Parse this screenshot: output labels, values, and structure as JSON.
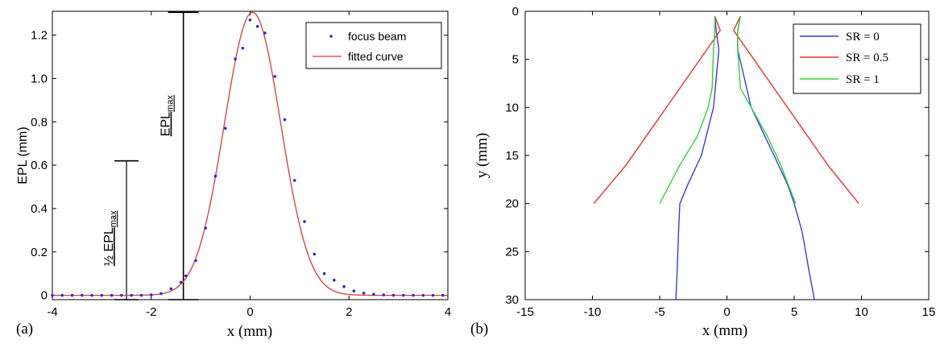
{
  "chart_data": [
    {
      "panel_label": "(a)",
      "type": "scatter",
      "xlabel": "x (mm)",
      "ylabel": "EPL (mm)",
      "xlim": [
        -4,
        4
      ],
      "ylim": [
        -0.02,
        1.31
      ],
      "xticks": [
        -4,
        -2,
        0,
        2,
        4
      ],
      "yticks": [
        0,
        0.2,
        0.4,
        0.6,
        0.8,
        1.0,
        1.2
      ],
      "ytick_labels": [
        "0",
        "0.2",
        "0.4",
        "0.6",
        "0.8",
        "1.0",
        "1.2"
      ],
      "grid": false,
      "legend_position": "top-right",
      "series": [
        {
          "name": "focus beam",
          "mark": "dots",
          "color": "#2a2ad8",
          "x": [
            -4.0,
            -3.8,
            -3.6,
            -3.4,
            -3.2,
            -3.0,
            -2.8,
            -2.6,
            -2.4,
            -2.2,
            -2.0,
            -1.8,
            -1.6,
            -1.4,
            -1.3,
            -1.1,
            -0.9,
            -0.7,
            -0.5,
            -0.3,
            -0.15,
            0.0,
            0.15,
            0.3,
            0.5,
            0.7,
            0.9,
            1.1,
            1.3,
            1.5,
            1.7,
            1.9,
            2.1,
            2.3,
            2.5,
            2.7,
            2.9,
            3.1,
            3.3,
            3.5,
            3.7,
            3.9
          ],
          "y": [
            0,
            0,
            0,
            0,
            0,
            0,
            0,
            0,
            0,
            0,
            0.002,
            0.008,
            0.03,
            0.06,
            0.09,
            0.16,
            0.31,
            0.55,
            0.77,
            1.09,
            1.14,
            1.27,
            1.24,
            1.21,
            1.01,
            0.81,
            0.53,
            0.34,
            0.19,
            0.1,
            0.07,
            0.04,
            0.02,
            0.01,
            0.005,
            0.002,
            0,
            0,
            0,
            0,
            0,
            0
          ]
        },
        {
          "name": "fitted curve",
          "mark": "line",
          "color": "#d93a3a",
          "model": "gaussian",
          "amplitude": 1.305,
          "center": 0.05,
          "sigma": 0.57
        }
      ],
      "annotations": [
        {
          "label": "EPL",
          "subscript": "max",
          "value": 1.305,
          "x": -1.35
        },
        {
          "label": "½ EPL",
          "subscript": "max",
          "value": 0.62,
          "x": -2.5
        }
      ]
    },
    {
      "panel_label": "(b)",
      "type": "line",
      "xlabel": "x (mm)",
      "ylabel": "y (mm)",
      "xlim": [
        -15,
        15
      ],
      "ylim": [
        0,
        30
      ],
      "y_reversed": true,
      "xticks": [
        -15,
        -10,
        -5,
        0,
        5,
        10,
        15
      ],
      "yticks": [
        0,
        5,
        10,
        15,
        20,
        25,
        30
      ],
      "grid": false,
      "legend_position": "top-right",
      "series": [
        {
          "name": "SR = 0",
          "color": "#3a3af0",
          "paths": [
            {
              "x": [
                -0.9,
                -0.8,
                -0.6,
                -1.0,
                -1.9,
                -2.9,
                -3.5,
                -3.6,
                -3.7,
                -3.8
              ],
              "y": [
                0.5,
                2.0,
                4.0,
                10.0,
                15.0,
                18.0,
                20.0,
                23.0,
                27.0,
                30.0
              ]
            },
            {
              "x": [
                1.0,
                0.8,
                0.8,
                1.8,
                3.5,
                4.5,
                5.0,
                5.6,
                6.1,
                6.5
              ],
              "y": [
                0.5,
                2.0,
                4.0,
                10.0,
                15.0,
                18.0,
                20.0,
                23.0,
                27.0,
                30.0
              ]
            }
          ]
        },
        {
          "name": "SR = 0.5",
          "color": "#e8312f",
          "paths": [
            {
              "x": [
                -0.9,
                -0.5,
                -1.5,
                -3.5,
                -5.5,
                -7.5,
                -9.9
              ],
              "y": [
                0.5,
                2.0,
                4.0,
                8.0,
                12.0,
                16.0,
                20.0
              ]
            },
            {
              "x": [
                1.0,
                0.5,
                1.5,
                3.5,
                5.5,
                7.5,
                9.8
              ],
              "y": [
                0.5,
                2.0,
                4.0,
                8.0,
                12.0,
                16.0,
                20.0
              ]
            }
          ]
        },
        {
          "name": "SR = 1",
          "color": "#2bd62b",
          "paths": [
            {
              "x": [
                -0.9,
                -0.9,
                -1.0,
                -1.1,
                -1.4,
                -2.2,
                -3.5,
                -5.0
              ],
              "y": [
                0.5,
                2.0,
                4.0,
                8.0,
                10.0,
                13.0,
                16.0,
                20.0
              ]
            },
            {
              "x": [
                1.0,
                0.8,
                0.8,
                1.0,
                1.8,
                3.0,
                4.0,
                5.1
              ],
              "y": [
                0.5,
                2.0,
                4.0,
                8.0,
                10.0,
                13.0,
                16.0,
                20.0
              ]
            }
          ]
        }
      ]
    }
  ]
}
